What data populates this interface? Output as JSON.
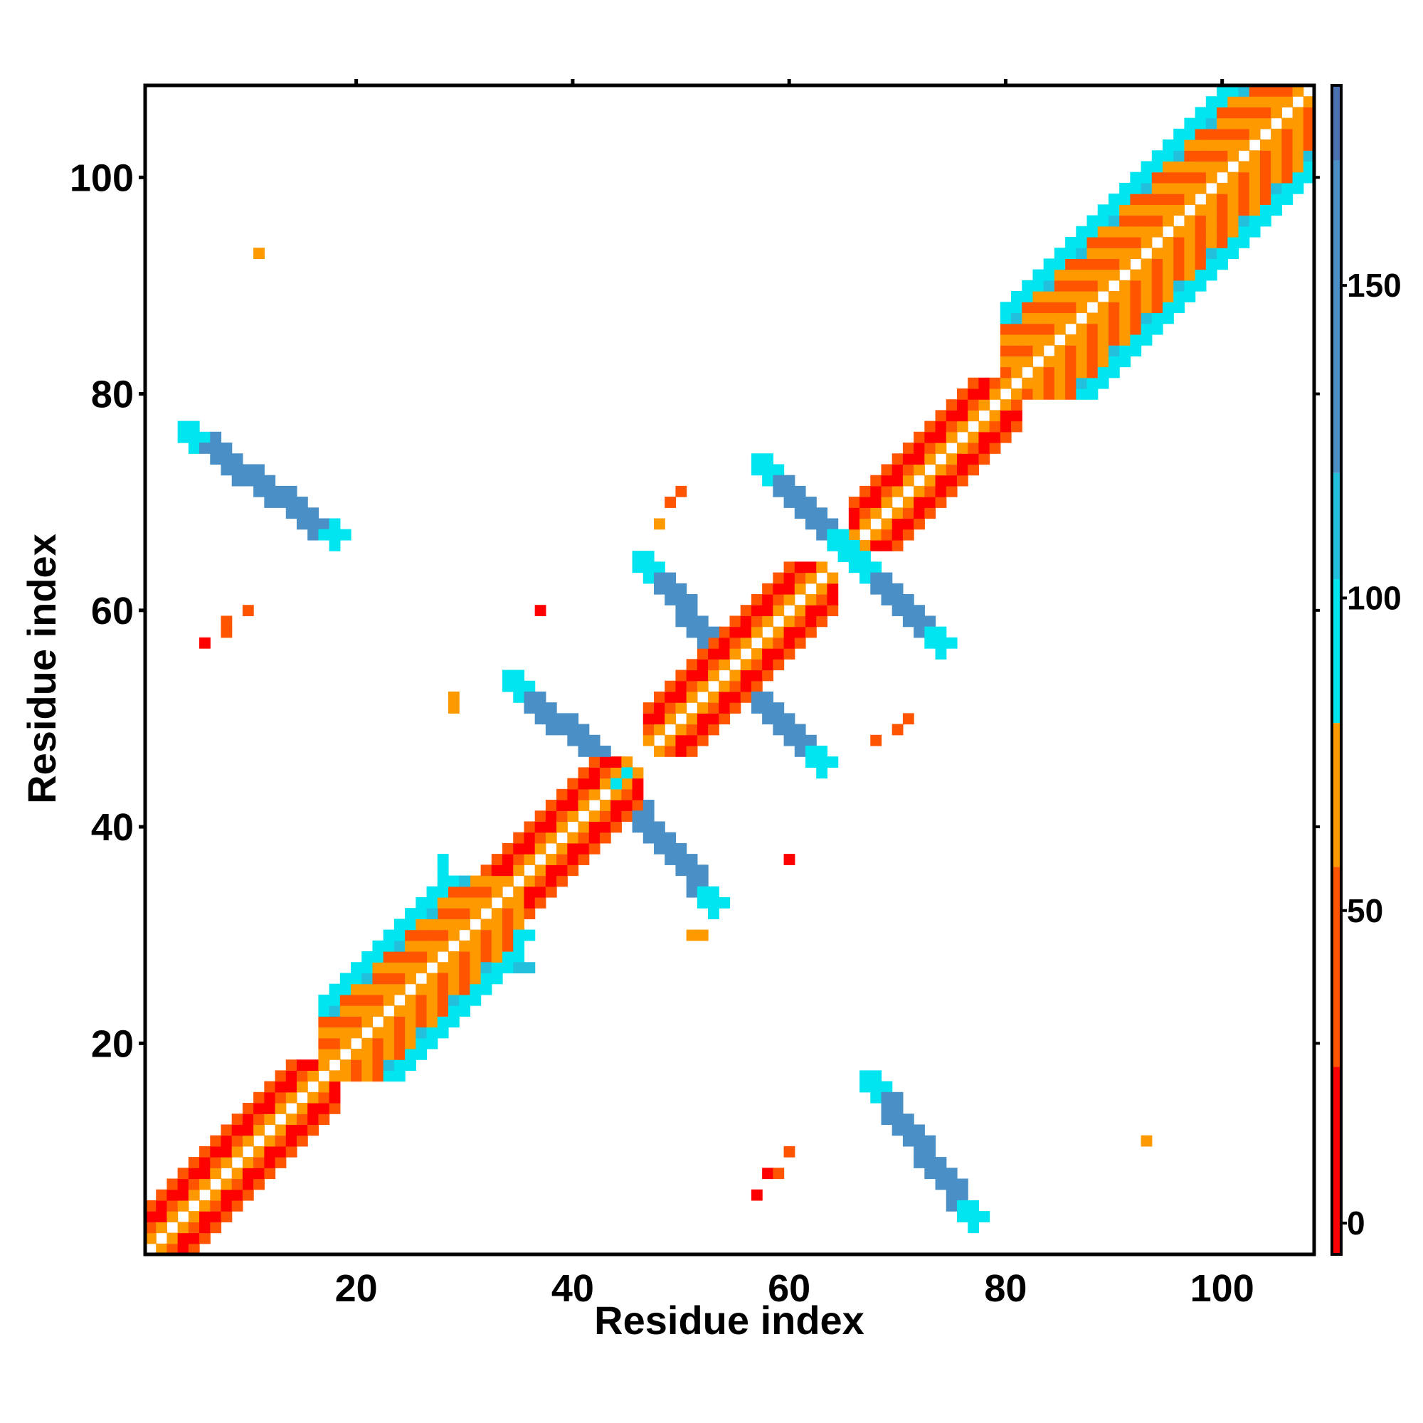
{
  "chart_data": {
    "type": "heatmap",
    "title": "",
    "xlabel": "Residue index",
    "ylabel": "Residue index",
    "xlim": [
      0.5,
      108.5
    ],
    "ylim": [
      0.5,
      108.5
    ],
    "x_ticks": [
      "20",
      "40",
      "60",
      "80",
      "100"
    ],
    "y_ticks": [
      "20",
      "40",
      "60",
      "80",
      "100"
    ],
    "grid": false,
    "legend": "none",
    "colorbar": {
      "range": [
        -5,
        182
      ],
      "ticks": [
        "0",
        "50",
        "100",
        "150"
      ],
      "stops": [
        {
          "from": -5,
          "to": 25,
          "color": "#ff0000"
        },
        {
          "from": 25,
          "to": 57,
          "color": "#ff5500"
        },
        {
          "from": 57,
          "to": 80,
          "color": "#ff9900"
        },
        {
          "from": 80,
          "to": 103,
          "color": "#00e5f0"
        },
        {
          "from": 103,
          "to": 120,
          "color": "#22c0dd"
        },
        {
          "from": 120,
          "to": 170,
          "color": "#4a90c6"
        },
        {
          "from": 170,
          "to": 182,
          "color": "#4a72b0"
        }
      ]
    },
    "diagonal_helix_segments": [
      {
        "start": 1,
        "end": 17,
        "value_pattern": [
          10,
          35
        ]
      },
      {
        "start": 27,
        "end": 45,
        "value_pattern": [
          10,
          35
        ]
      },
      {
        "start": 47,
        "end": 63,
        "value_pattern": [
          10,
          35
        ]
      },
      {
        "start": 66,
        "end": 80,
        "value_pattern": [
          10,
          35
        ]
      }
    ],
    "diagonal_sheet_segments": [
      {
        "start": 17,
        "end": 33,
        "width": 5
      },
      {
        "start": 80,
        "end": 107,
        "width": 6
      }
    ],
    "antidiagonal_bands": [
      {
        "x0": 4,
        "y0": 77,
        "x1": 18,
        "y1": 67
      },
      {
        "x0": 34,
        "y0": 54,
        "x1": 44,
        "y1": 45
      },
      {
        "x0": 44,
        "y0": 44,
        "x1": 53,
        "y1": 33
      },
      {
        "x0": 46,
        "y0": 65,
        "x1": 54,
        "y1": 56
      },
      {
        "x0": 55,
        "y0": 54,
        "x1": 63,
        "y1": 46
      },
      {
        "x0": 57,
        "y0": 74,
        "x1": 65,
        "y1": 66
      },
      {
        "x0": 66,
        "y0": 65,
        "x1": 74,
        "y1": 57
      },
      {
        "x0": 67,
        "y0": 17,
        "x1": 77,
        "y1": 4
      }
    ],
    "isolated_cells": [
      {
        "x": 11,
        "y": 93,
        "v": 65
      },
      {
        "x": 6,
        "y": 57,
        "v": 10
      },
      {
        "x": 8,
        "y": 58,
        "v": 35
      },
      {
        "x": 8,
        "y": 59,
        "v": 35
      },
      {
        "x": 10,
        "y": 60,
        "v": 35
      },
      {
        "x": 37,
        "y": 60,
        "v": 10
      },
      {
        "x": 29,
        "y": 51,
        "v": 65
      },
      {
        "x": 29,
        "y": 52,
        "v": 65
      },
      {
        "x": 48,
        "y": 68,
        "v": 65
      },
      {
        "x": 49,
        "y": 70,
        "v": 35
      },
      {
        "x": 50,
        "y": 71,
        "v": 35
      },
      {
        "x": 60,
        "y": 37,
        "v": 10
      },
      {
        "x": 68,
        "y": 48,
        "v": 35
      },
      {
        "x": 70,
        "y": 49,
        "v": 35
      },
      {
        "x": 71,
        "y": 50,
        "v": 35
      },
      {
        "x": 51,
        "y": 30,
        "v": 65
      },
      {
        "x": 52,
        "y": 30,
        "v": 65
      },
      {
        "x": 57,
        "y": 6,
        "v": 10
      },
      {
        "x": 58,
        "y": 8,
        "v": 10
      },
      {
        "x": 59,
        "y": 8,
        "v": 35
      },
      {
        "x": 60,
        "y": 10,
        "v": 35
      },
      {
        "x": 93,
        "y": 11,
        "v": 65
      },
      {
        "x": 28,
        "y": 37,
        "v": 90
      },
      {
        "x": 28,
        "y": 36,
        "v": 90
      },
      {
        "x": 35,
        "y": 27,
        "v": 110
      },
      {
        "x": 36,
        "y": 27,
        "v": 110
      },
      {
        "x": 35,
        "y": 30,
        "v": 90
      },
      {
        "x": 36,
        "y": 30,
        "v": 90
      },
      {
        "x": 64,
        "y": 46,
        "v": 90
      },
      {
        "x": 46,
        "y": 64,
        "v": 90
      }
    ]
  }
}
